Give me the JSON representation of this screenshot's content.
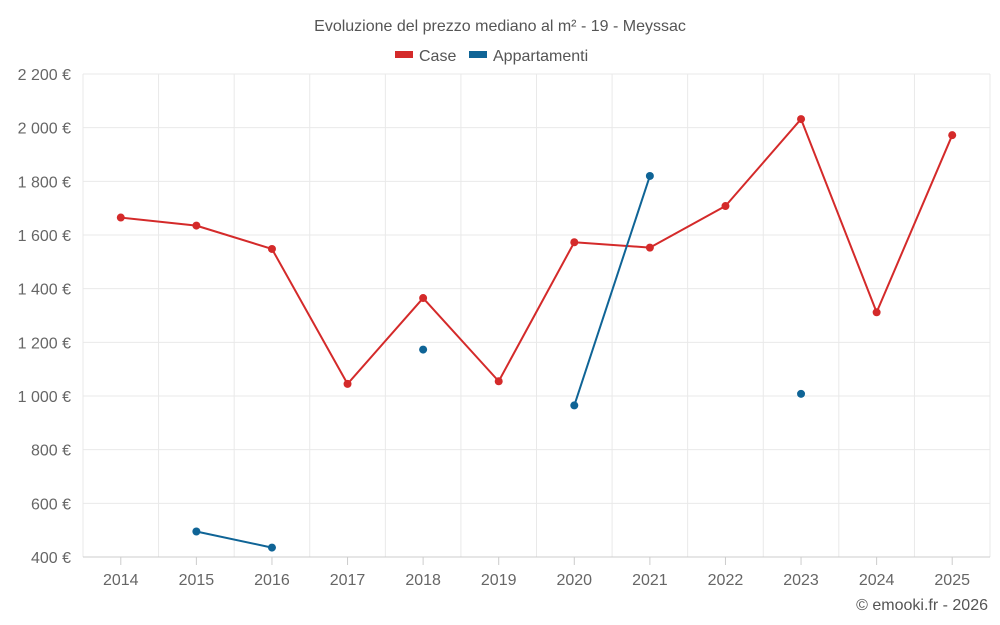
{
  "chart_data": {
    "type": "line",
    "title": "Evoluzione del prezzo mediano al m² - 19 - Meyssac",
    "categories": [
      "2014",
      "2015",
      "2016",
      "2017",
      "2018",
      "2019",
      "2020",
      "2021",
      "2022",
      "2023",
      "2024",
      "2025"
    ],
    "ylim": [
      400,
      2200
    ],
    "yticks": [
      400,
      600,
      800,
      1000,
      1200,
      1400,
      1600,
      1800,
      2000,
      2200
    ],
    "ytick_labels": [
      "400 €",
      "600 €",
      "800 €",
      "1 000 €",
      "1 200 €",
      "1 400 €",
      "1 600 €",
      "1 800 €",
      "2 000 €",
      "2 200 €"
    ],
    "grid": true,
    "legend_position": "top-center",
    "series": [
      {
        "name": "Case",
        "color": "#d42a2a",
        "values": [
          1665,
          1635,
          1548,
          1045,
          1365,
          1055,
          1573,
          1553,
          1708,
          2032,
          1312,
          1972
        ]
      },
      {
        "name": "Appartamenti",
        "color": "#0f6496",
        "values": [
          null,
          495,
          435,
          null,
          1173,
          null,
          965,
          1820,
          null,
          1008,
          null,
          null
        ]
      }
    ]
  },
  "credit": "© emooki.fr - 2026"
}
